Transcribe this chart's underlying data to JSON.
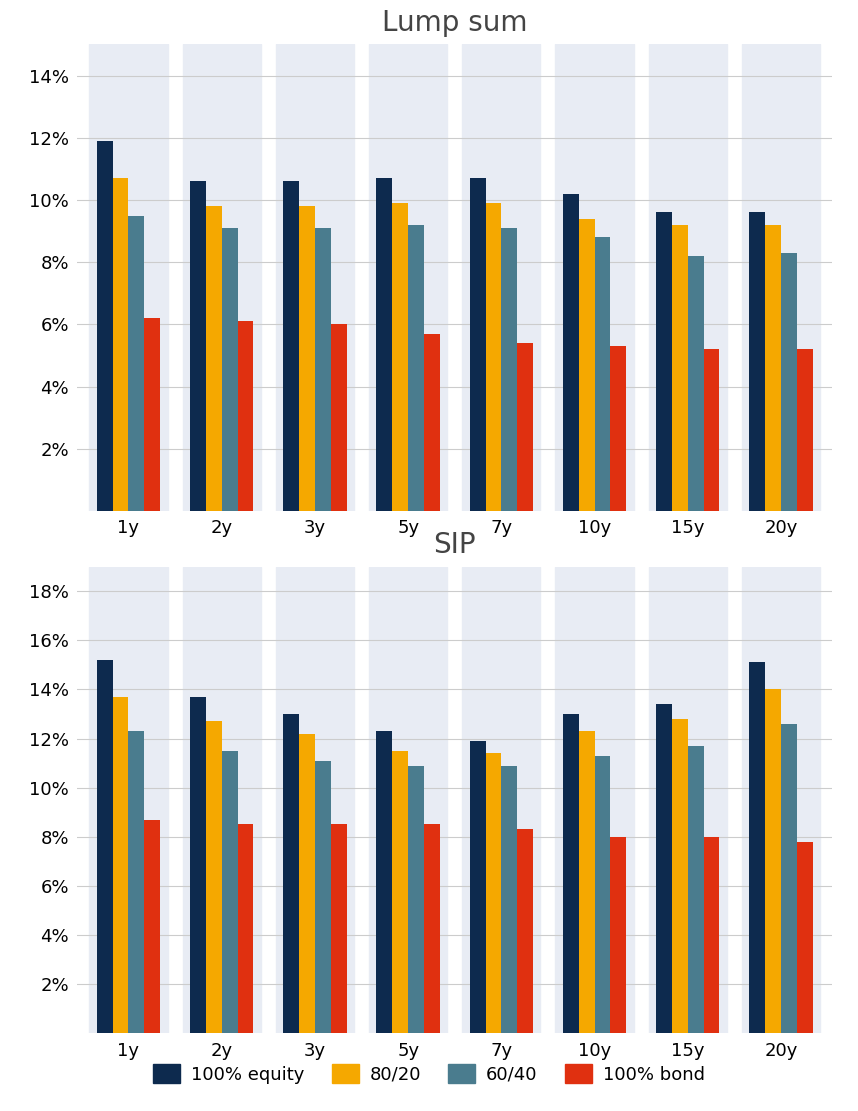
{
  "lump_sum": {
    "categories": [
      "1y",
      "2y",
      "3y",
      "5y",
      "7y",
      "10y",
      "15y",
      "20y"
    ],
    "equity_100": [
      11.9,
      10.6,
      10.6,
      10.7,
      10.7,
      10.2,
      9.6,
      9.6
    ],
    "blend_8020": [
      10.7,
      9.8,
      9.8,
      9.9,
      9.9,
      9.4,
      9.2,
      9.2
    ],
    "blend_6040": [
      9.5,
      9.1,
      9.1,
      9.2,
      9.1,
      8.8,
      8.2,
      8.3
    ],
    "bond_100": [
      6.2,
      6.1,
      6.0,
      5.7,
      5.4,
      5.3,
      5.2,
      5.2
    ],
    "title": "Lump sum",
    "ylim": [
      0,
      15
    ],
    "yticks": [
      2,
      4,
      6,
      8,
      10,
      12,
      14
    ]
  },
  "sip": {
    "categories": [
      "1y",
      "2y",
      "3y",
      "5y",
      "7y",
      "10y",
      "15y",
      "20y"
    ],
    "equity_100": [
      15.2,
      13.7,
      13.0,
      12.3,
      11.9,
      13.0,
      13.4,
      15.1
    ],
    "blend_8020": [
      13.7,
      12.7,
      12.2,
      11.5,
      11.4,
      12.3,
      12.8,
      14.0
    ],
    "blend_6040": [
      12.3,
      11.5,
      11.1,
      10.9,
      10.9,
      11.3,
      11.7,
      12.6
    ],
    "bond_100": [
      8.7,
      8.5,
      8.5,
      8.5,
      8.3,
      8.0,
      8.0,
      7.8
    ],
    "title": "SIP",
    "ylim": [
      0,
      19
    ],
    "yticks": [
      2,
      4,
      6,
      8,
      10,
      12,
      14,
      16,
      18
    ]
  },
  "colors": {
    "equity_100": "#0d2a4e",
    "blend_8020": "#f5a800",
    "blend_6040": "#4a7c8e",
    "bond_100": "#e03010"
  },
  "legend_labels": [
    "100% equity",
    "80/20",
    "60/40",
    "100% bond"
  ],
  "bg_color": "#ffffff",
  "stripe_color": "#e8ecf4",
  "grid_color": "#cccccc",
  "bar_width": 0.17,
  "title_fontsize": 20,
  "tick_fontsize": 13,
  "legend_fontsize": 13
}
